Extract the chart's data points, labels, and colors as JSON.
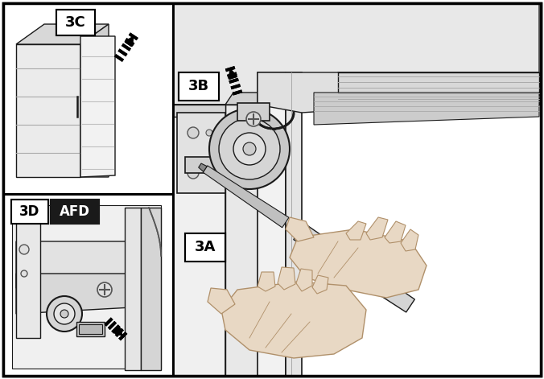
{
  "bg_color": "#ffffff",
  "border_color": "#000000",
  "label_3C": "3C",
  "label_3D": "3D",
  "label_AFD": "AFD",
  "label_3B": "3B",
  "label_3A": "3A",
  "fig_width": 6.76,
  "fig_height": 4.71,
  "dpi": 100,
  "outer_lw": 2.5,
  "panel_lw": 1.8,
  "line_color": "#1a1a1a",
  "gray_light": "#d8d8d8",
  "gray_mid": "#aaaaaa",
  "gray_dark": "#555555",
  "black": "#000000",
  "white": "#ffffff",
  "afd_box_bg": "#1a1a1a",
  "afd_text_color": "#ffffff",
  "skin_color": "#e8d8c4",
  "skin_edge": "#b0906a"
}
